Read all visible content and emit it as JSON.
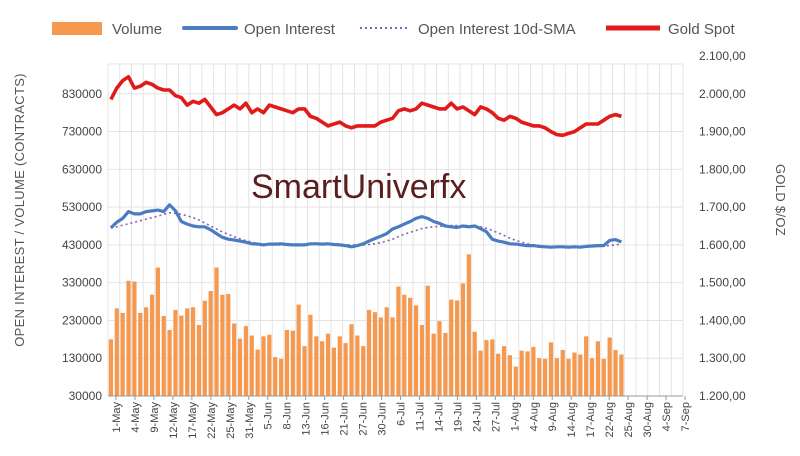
{
  "watermark": "SmartUniverfx",
  "colors": {
    "volume": "#f4994f",
    "open_interest": "#4a7cc0",
    "oi_sma": "#8e5bb5",
    "gold": "#e11a1a",
    "grid": "#e4e4e4",
    "axis": "#9a9a9a"
  },
  "chart_data": {
    "type": "bar+line",
    "title": "",
    "ylabel_left": "OPEN INTEREST / VOLUME (CONTRACTS)",
    "ylabel_right": "GOLD $/OZ",
    "ylim_left": [
      30000,
      930000
    ],
    "ylim_right": [
      1200,
      2100
    ],
    "left_ticks": [
      "30000",
      "130000",
      "230000",
      "330000",
      "430000",
      "530000",
      "630000",
      "730000",
      "830000"
    ],
    "right_ticks": [
      "1.200,00",
      "1.300,00",
      "1.400,00",
      "1.500,00",
      "1.600,00",
      "1.700,00",
      "1.800,00",
      "1.900,00",
      "2.000,00",
      "2.100,00"
    ],
    "x_ticks": [
      "1-May",
      "4-May",
      "9-May",
      "12-May",
      "17-May",
      "22-May",
      "25-May",
      "31-May",
      "5-Jun",
      "8-Jun",
      "13-Jun",
      "16-Jun",
      "21-Jun",
      "27-Jun",
      "30-Jun",
      "6-Jul",
      "11-Jul",
      "14-Jul",
      "19-Jul",
      "24-Jul",
      "27-Jul",
      "1-Aug",
      "4-Aug",
      "9-Aug",
      "14-Aug",
      "17-Aug",
      "22-Aug",
      "25-Aug",
      "30-Aug",
      "4-Sep",
      "7-Sep"
    ],
    "grid": true,
    "legend_position": "top",
    "series": [
      {
        "name": "Volume",
        "type": "bar",
        "axis": "left",
        "values": [
          180000,
          262000,
          250000,
          335000,
          333000,
          250000,
          265000,
          298000,
          370000,
          242000,
          205000,
          258000,
          243000,
          262000,
          265000,
          218000,
          282000,
          308000,
          370000,
          298000,
          300000,
          222000,
          182000,
          215000,
          190000,
          153000,
          188000,
          192000,
          133000,
          128000,
          205000,
          203000,
          272000,
          162000,
          245000,
          188000,
          175000,
          195000,
          158000,
          188000,
          170000,
          220000,
          190000,
          162000,
          258000,
          252000,
          238000,
          265000,
          238000,
          320000,
          298000,
          290000,
          270000,
          218000,
          322000,
          195000,
          228000,
          197000,
          285000,
          283000,
          328000,
          405000,
          200000,
          150000,
          178000,
          180000,
          142000,
          162000,
          138000,
          108000,
          150000,
          148000,
          160000,
          130000,
          128000,
          172000,
          130000,
          152000,
          128000,
          145000,
          140000,
          188000,
          130000,
          175000,
          128000,
          185000,
          152000,
          140000
        ]
      },
      {
        "name": "Open Interest",
        "type": "line",
        "axis": "left",
        "values": [
          475000,
          490000,
          500000,
          518000,
          512000,
          512000,
          518000,
          520000,
          522000,
          518000,
          536000,
          520000,
          492000,
          485000,
          480000,
          478000,
          478000,
          470000,
          460000,
          450000,
          445000,
          443000,
          440000,
          437000,
          433000,
          432000,
          430000,
          432000,
          432000,
          433000,
          431000,
          430000,
          430000,
          430000,
          433000,
          433000,
          432000,
          433000,
          431000,
          430000,
          428000,
          425000,
          428000,
          433000,
          440000,
          447000,
          453000,
          460000,
          472000,
          478000,
          485000,
          492000,
          500000,
          505000,
          500000,
          492000,
          487000,
          480000,
          478000,
          476000,
          480000,
          478000,
          480000,
          473000,
          465000,
          445000,
          440000,
          437000,
          433000,
          432000,
          430000,
          428000,
          428000,
          426000,
          425000,
          424000,
          425000,
          425000,
          424000,
          425000,
          424000,
          426000,
          427000,
          428000,
          428000,
          442000,
          444000,
          438000
        ]
      },
      {
        "name": "Open Interest 10d-SMA",
        "type": "line",
        "axis": "left",
        "values": [
          475000,
          478000,
          482000,
          486000,
          490000,
          494000,
          498000,
          502000,
          506000,
          511000,
          515000,
          514000,
          511000,
          507000,
          502000,
          496000,
          488000,
          480000,
          472000,
          464000,
          458000,
          452000,
          446000,
          441000,
          437000,
          434000,
          432000,
          431000,
          430000,
          430000,
          430000,
          430000,
          430000,
          431000,
          431000,
          432000,
          432000,
          432000,
          431000,
          430000,
          430000,
          430000,
          430000,
          430000,
          431000,
          433000,
          436000,
          440000,
          445000,
          452000,
          458000,
          463000,
          468000,
          473000,
          476000,
          478000,
          479000,
          480000,
          481000,
          481000,
          481000,
          481000,
          480000,
          478000,
          474000,
          468000,
          462000,
          455000,
          448000,
          442000,
          437000,
          433000,
          430000,
          428000,
          426000,
          425000,
          425000,
          425000,
          425000,
          425000,
          425000,
          425000,
          425000,
          426000,
          427000,
          428000,
          430000,
          432000
        ]
      },
      {
        "name": "Gold Spot",
        "type": "line",
        "axis": "right",
        "values": [
          1985,
          2015,
          2035,
          2045,
          2015,
          2020,
          2030,
          2025,
          2015,
          2010,
          2010,
          1995,
          1990,
          1970,
          1980,
          1975,
          1985,
          1965,
          1945,
          1950,
          1960,
          1970,
          1960,
          1975,
          1950,
          1960,
          1950,
          1970,
          1965,
          1960,
          1955,
          1950,
          1960,
          1960,
          1940,
          1935,
          1925,
          1915,
          1920,
          1925,
          1915,
          1910,
          1915,
          1915,
          1915,
          1915,
          1925,
          1930,
          1935,
          1955,
          1960,
          1955,
          1960,
          1975,
          1970,
          1965,
          1960,
          1960,
          1975,
          1960,
          1965,
          1955,
          1945,
          1965,
          1960,
          1950,
          1935,
          1930,
          1940,
          1935,
          1925,
          1920,
          1915,
          1915,
          1910,
          1900,
          1892,
          1890,
          1895,
          1900,
          1910,
          1920,
          1920,
          1920,
          1930,
          1940,
          1945,
          1940
        ]
      }
    ]
  }
}
